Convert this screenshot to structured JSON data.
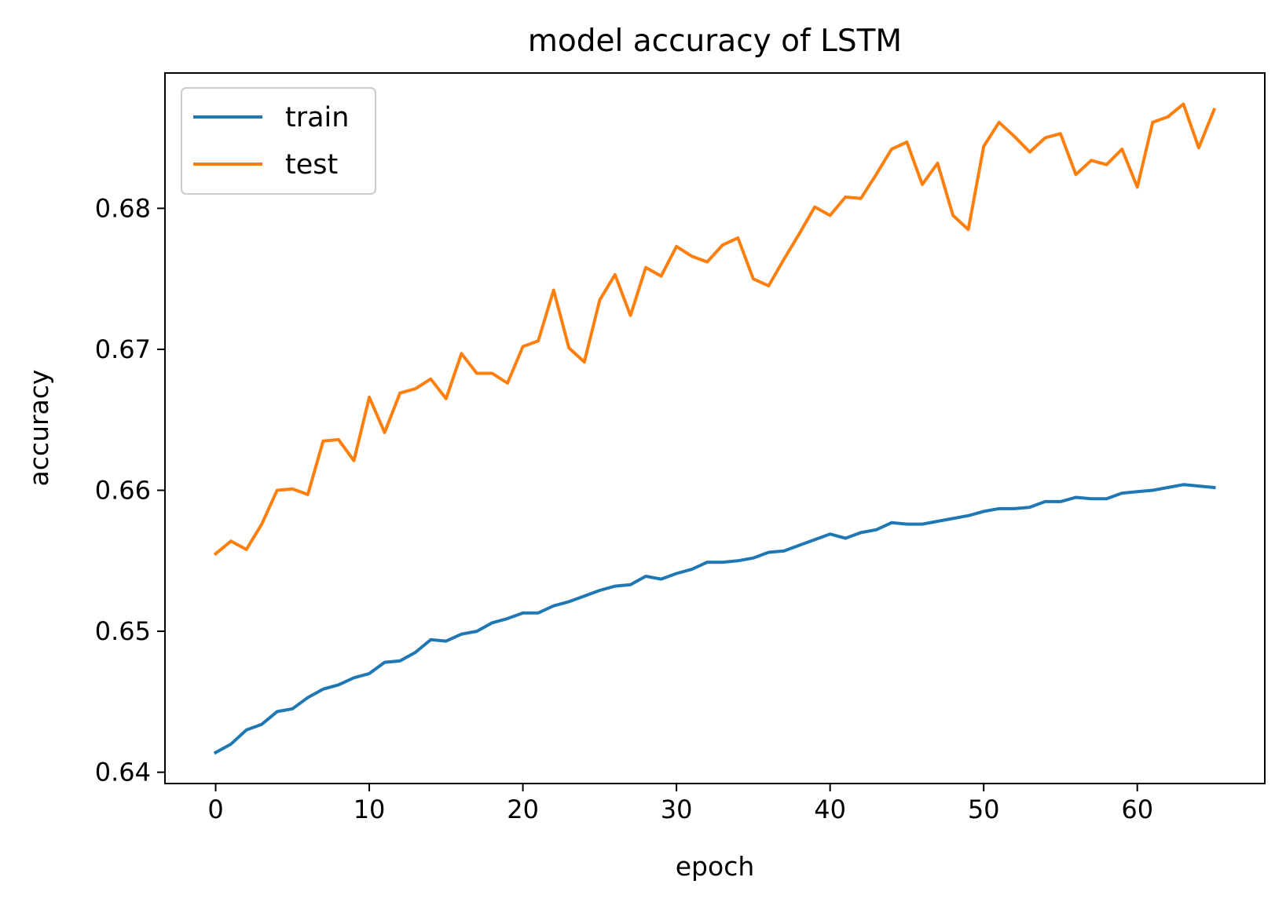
{
  "chart_data": {
    "type": "line",
    "title": "model accuracy of LSTM",
    "xlabel": "epoch",
    "ylabel": "accuracy",
    "xlim": [
      -3.3,
      68.3
    ],
    "ylim": [
      0.6392,
      0.6896
    ],
    "xticks": [
      0,
      10,
      20,
      30,
      40,
      50,
      60
    ],
    "xtick_labels": [
      "0",
      "10",
      "20",
      "30",
      "40",
      "50",
      "60"
    ],
    "yticks": [
      0.64,
      0.65,
      0.66,
      0.67,
      0.68
    ],
    "ytick_labels": [
      "0.64",
      "0.65",
      "0.66",
      "0.67",
      "0.68"
    ],
    "grid": false,
    "legend_position": "upper-left",
    "x": [
      0,
      1,
      2,
      3,
      4,
      5,
      6,
      7,
      8,
      9,
      10,
      11,
      12,
      13,
      14,
      15,
      16,
      17,
      18,
      19,
      20,
      21,
      22,
      23,
      24,
      25,
      26,
      27,
      28,
      29,
      30,
      31,
      32,
      33,
      34,
      35,
      36,
      37,
      38,
      39,
      40,
      41,
      42,
      43,
      44,
      45,
      46,
      47,
      48,
      49,
      50,
      51,
      52,
      53,
      54,
      55,
      56,
      57,
      58,
      59,
      60,
      61,
      62,
      63,
      64,
      65
    ],
    "series": [
      {
        "name": "train",
        "color": "#1f77b4",
        "values": [
          0.6414,
          0.642,
          0.643,
          0.6434,
          0.6443,
          0.6445,
          0.6453,
          0.6459,
          0.6462,
          0.6467,
          0.647,
          0.6478,
          0.6479,
          0.6485,
          0.6494,
          0.6493,
          0.6498,
          0.65,
          0.6506,
          0.6509,
          0.6513,
          0.6513,
          0.6518,
          0.6521,
          0.6525,
          0.6529,
          0.6532,
          0.6533,
          0.6539,
          0.6537,
          0.6541,
          0.6544,
          0.6549,
          0.6549,
          0.655,
          0.6552,
          0.6556,
          0.6557,
          0.6561,
          0.6565,
          0.6569,
          0.6566,
          0.657,
          0.6572,
          0.6577,
          0.6576,
          0.6576,
          0.6578,
          0.658,
          0.6582,
          0.6585,
          0.6587,
          0.6587,
          0.6588,
          0.6592,
          0.6592,
          0.6595,
          0.6594,
          0.6594,
          0.6598,
          0.6599,
          0.66,
          0.6602,
          0.6604,
          0.6603,
          0.6602
        ]
      },
      {
        "name": "test",
        "color": "#ff7f0e",
        "values": [
          0.6555,
          0.6564,
          0.6558,
          0.6576,
          0.66,
          0.6601,
          0.6597,
          0.6635,
          0.6636,
          0.6621,
          0.6666,
          0.6641,
          0.6669,
          0.6672,
          0.6679,
          0.6665,
          0.6697,
          0.6683,
          0.6683,
          0.6676,
          0.6702,
          0.6706,
          0.6742,
          0.6701,
          0.6691,
          0.6735,
          0.6753,
          0.6724,
          0.6758,
          0.6752,
          0.6773,
          0.6766,
          0.6762,
          0.6774,
          0.6779,
          0.675,
          0.6745,
          0.6764,
          0.6782,
          0.6801,
          0.6795,
          0.6808,
          0.6807,
          0.6824,
          0.6842,
          0.6847,
          0.6817,
          0.6832,
          0.6795,
          0.6785,
          0.6844,
          0.6861,
          0.6851,
          0.684,
          0.685,
          0.6853,
          0.6824,
          0.6834,
          0.6831,
          0.6842,
          0.6815,
          0.6861,
          0.6865,
          0.6874,
          0.6843,
          0.687
        ]
      }
    ]
  }
}
